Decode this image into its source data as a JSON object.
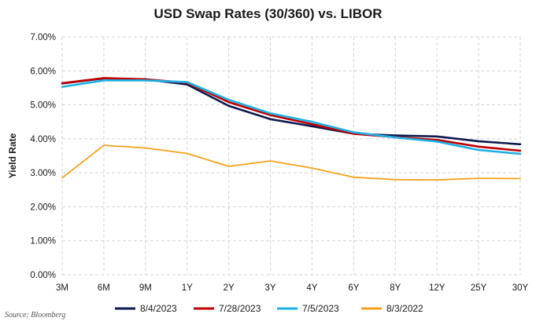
{
  "chart_data": {
    "type": "line",
    "title": "USD Swap Rates (30/360) vs. LIBOR",
    "xlabel": "",
    "ylabel": "Yield Rate",
    "categories": [
      "3M",
      "6M",
      "9M",
      "1Y",
      "2Y",
      "3Y",
      "4Y",
      "6Y",
      "8Y",
      "12Y",
      "25Y",
      "30Y"
    ],
    "y_tick_labels": [
      "0.00%",
      "1.00%",
      "2.00%",
      "3.00%",
      "4.00%",
      "5.00%",
      "6.00%",
      "7.00%"
    ],
    "ylim": [
      0,
      7
    ],
    "y_ticks": [
      0,
      1,
      2,
      3,
      4,
      5,
      6,
      7
    ],
    "grid": true,
    "legend_position": "bottom",
    "series": [
      {
        "name": "8/4/2023",
        "color": "#0d1a4f",
        "values": [
          5.63,
          5.78,
          5.75,
          5.6,
          4.97,
          4.58,
          4.37,
          4.15,
          4.1,
          4.07,
          3.93,
          3.84
        ]
      },
      {
        "name": "7/28/2023",
        "color": "#c00000",
        "values": [
          5.64,
          5.79,
          5.75,
          5.65,
          5.08,
          4.7,
          4.43,
          4.15,
          4.05,
          3.97,
          3.77,
          3.65
        ]
      },
      {
        "name": "7/5/2023",
        "color": "#1fb0e6",
        "values": [
          5.53,
          5.72,
          5.72,
          5.67,
          5.15,
          4.75,
          4.5,
          4.19,
          4.04,
          3.92,
          3.67,
          3.56
        ]
      },
      {
        "name": "8/3/2022",
        "color": "#f5a21a",
        "values": [
          2.85,
          3.81,
          3.73,
          3.57,
          3.19,
          3.35,
          3.14,
          2.87,
          2.8,
          2.79,
          2.84,
          2.83
        ]
      }
    ]
  },
  "source": "Source: Bloomberg"
}
